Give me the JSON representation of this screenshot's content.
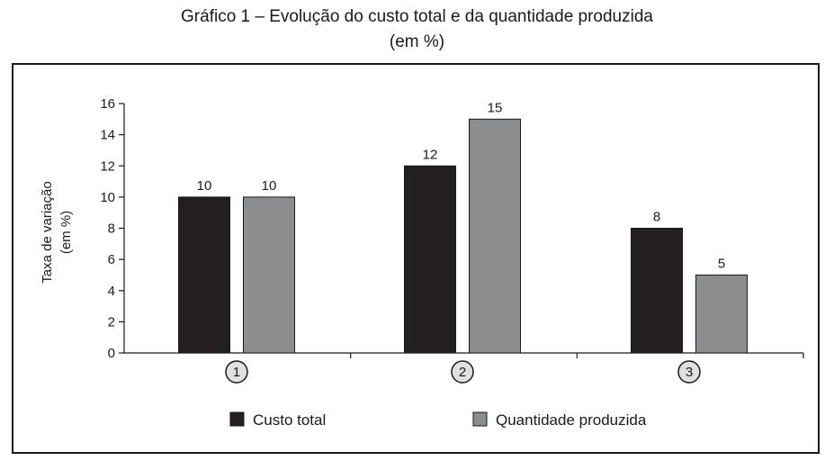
{
  "chart_data": {
    "type": "bar",
    "title": "Gráfico 1 – Evolução do custo total e da quantidade produzida",
    "subtitle": "(em %)",
    "ylabel": "Taxa de variação",
    "ylabel_unit": "(em %)",
    "xlabel": "",
    "categories": [
      "1",
      "2",
      "3"
    ],
    "series": [
      {
        "name": "Custo total",
        "values": [
          10,
          12,
          8
        ],
        "color": "#231f20"
      },
      {
        "name": "Quantidade produzida",
        "values": [
          10,
          15,
          5
        ],
        "color": "#8c8d8f"
      }
    ],
    "ylim": [
      0,
      16
    ],
    "yticks": [
      "0",
      "2",
      "4",
      "6",
      "8",
      "10",
      "12",
      "14",
      "16"
    ],
    "grid": false,
    "legend_position": "bottom",
    "category_marker": "circle"
  }
}
